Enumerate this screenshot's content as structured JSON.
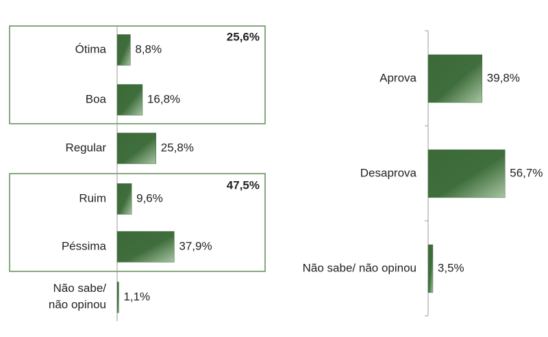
{
  "chart_data": [
    {
      "type": "bar",
      "orientation": "horizontal",
      "color": "#3f6e3c",
      "categories": [
        "Ótima",
        "Boa",
        "Regular",
        "Ruim",
        "Péssima",
        "Não sabe/ não opinou"
      ],
      "values": [
        8.8,
        16.8,
        25.8,
        9.6,
        37.9,
        1.1
      ],
      "value_labels": [
        "8,8%",
        "16,8%",
        "25,8%",
        "9,6%",
        "37,9%",
        "1,1%"
      ],
      "annotations": [
        {
          "text": "25,6%"
        },
        {
          "text": "47,5%"
        }
      ]
    },
    {
      "type": "bar",
      "orientation": "horizontal",
      "color": "#3f6e3c",
      "categories": [
        "Aprova",
        "Desaprova",
        "Não sabe/ não opinou"
      ],
      "values": [
        39.8,
        56.7,
        3.5
      ],
      "value_labels": [
        "39,8%",
        "56,7%",
        "3,5%"
      ]
    }
  ]
}
